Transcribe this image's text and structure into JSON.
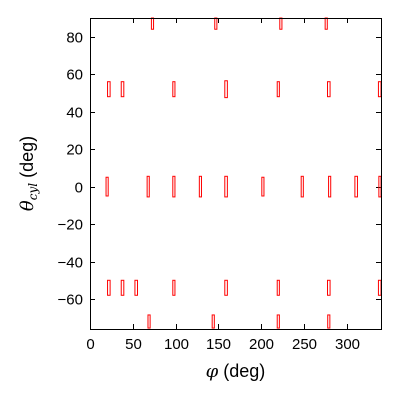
{
  "chart_data": {
    "type": "scatter",
    "title": "",
    "xlabel": {
      "symbol": "φ",
      "unit": " (deg)"
    },
    "ylabel": {
      "symbol": "θ",
      "subscript": "cyl",
      "unit": " (deg)"
    },
    "xlim": [
      0,
      340
    ],
    "ylim": [
      -76,
      90
    ],
    "xticks": [
      0,
      50,
      100,
      150,
      200,
      250,
      300
    ],
    "yticks": [
      -60,
      -40,
      -20,
      0,
      20,
      40,
      60,
      80
    ],
    "grid": false,
    "legend": "none",
    "marker": "rectangle",
    "color": "#ff0000",
    "points": [
      {
        "x": 73,
        "y": 88,
        "w": 2.5,
        "h": 6
      },
      {
        "x": 147,
        "y": 88,
        "w": 2.5,
        "h": 6
      },
      {
        "x": 223,
        "y": 88,
        "w": 2.5,
        "h": 6
      },
      {
        "x": 276,
        "y": 88,
        "w": 2.5,
        "h": 6
      },
      {
        "x": 22,
        "y": 52,
        "w": 3,
        "h": 8
      },
      {
        "x": 38,
        "y": 52,
        "w": 3,
        "h": 8
      },
      {
        "x": 98,
        "y": 52,
        "w": 2.5,
        "h": 8
      },
      {
        "x": 159,
        "y": 52,
        "w": 3,
        "h": 9
      },
      {
        "x": 220,
        "y": 52,
        "w": 2.5,
        "h": 8
      },
      {
        "x": 279,
        "y": 52,
        "w": 3,
        "h": 8
      },
      {
        "x": 339,
        "y": 52,
        "w": 3,
        "h": 8
      },
      {
        "x": 20,
        "y": 0,
        "w": 2.5,
        "h": 10
      },
      {
        "x": 68,
        "y": 0,
        "w": 2.5,
        "h": 11
      },
      {
        "x": 98,
        "y": 0,
        "w": 2.5,
        "h": 11
      },
      {
        "x": 129,
        "y": 0,
        "w": 2.5,
        "h": 11
      },
      {
        "x": 159,
        "y": 0,
        "w": 3,
        "h": 11
      },
      {
        "x": 202,
        "y": 0,
        "w": 2.5,
        "h": 10
      },
      {
        "x": 248,
        "y": 0,
        "w": 2.5,
        "h": 11
      },
      {
        "x": 280,
        "y": 0,
        "w": 2.5,
        "h": 11
      },
      {
        "x": 311,
        "y": 0,
        "w": 3,
        "h": 11
      },
      {
        "x": 340,
        "y": 0,
        "w": 2.5,
        "h": 11
      },
      {
        "x": 22,
        "y": -54,
        "w": 3,
        "h": 8
      },
      {
        "x": 38,
        "y": -54,
        "w": 3,
        "h": 8
      },
      {
        "x": 54,
        "y": -54,
        "w": 3,
        "h": 8
      },
      {
        "x": 98,
        "y": -54,
        "w": 2.5,
        "h": 8
      },
      {
        "x": 159,
        "y": -54,
        "w": 3,
        "h": 8
      },
      {
        "x": 220,
        "y": -54,
        "w": 2.5,
        "h": 8
      },
      {
        "x": 279,
        "y": -54,
        "w": 3,
        "h": 8
      },
      {
        "x": 339,
        "y": -54,
        "w": 3,
        "h": 8
      },
      {
        "x": 69,
        "y": -72,
        "w": 2.5,
        "h": 7
      },
      {
        "x": 144,
        "y": -72,
        "w": 2.5,
        "h": 7
      },
      {
        "x": 220,
        "y": -72,
        "w": 2.5,
        "h": 7
      },
      {
        "x": 279,
        "y": -72,
        "w": 2.5,
        "h": 7
      }
    ]
  }
}
